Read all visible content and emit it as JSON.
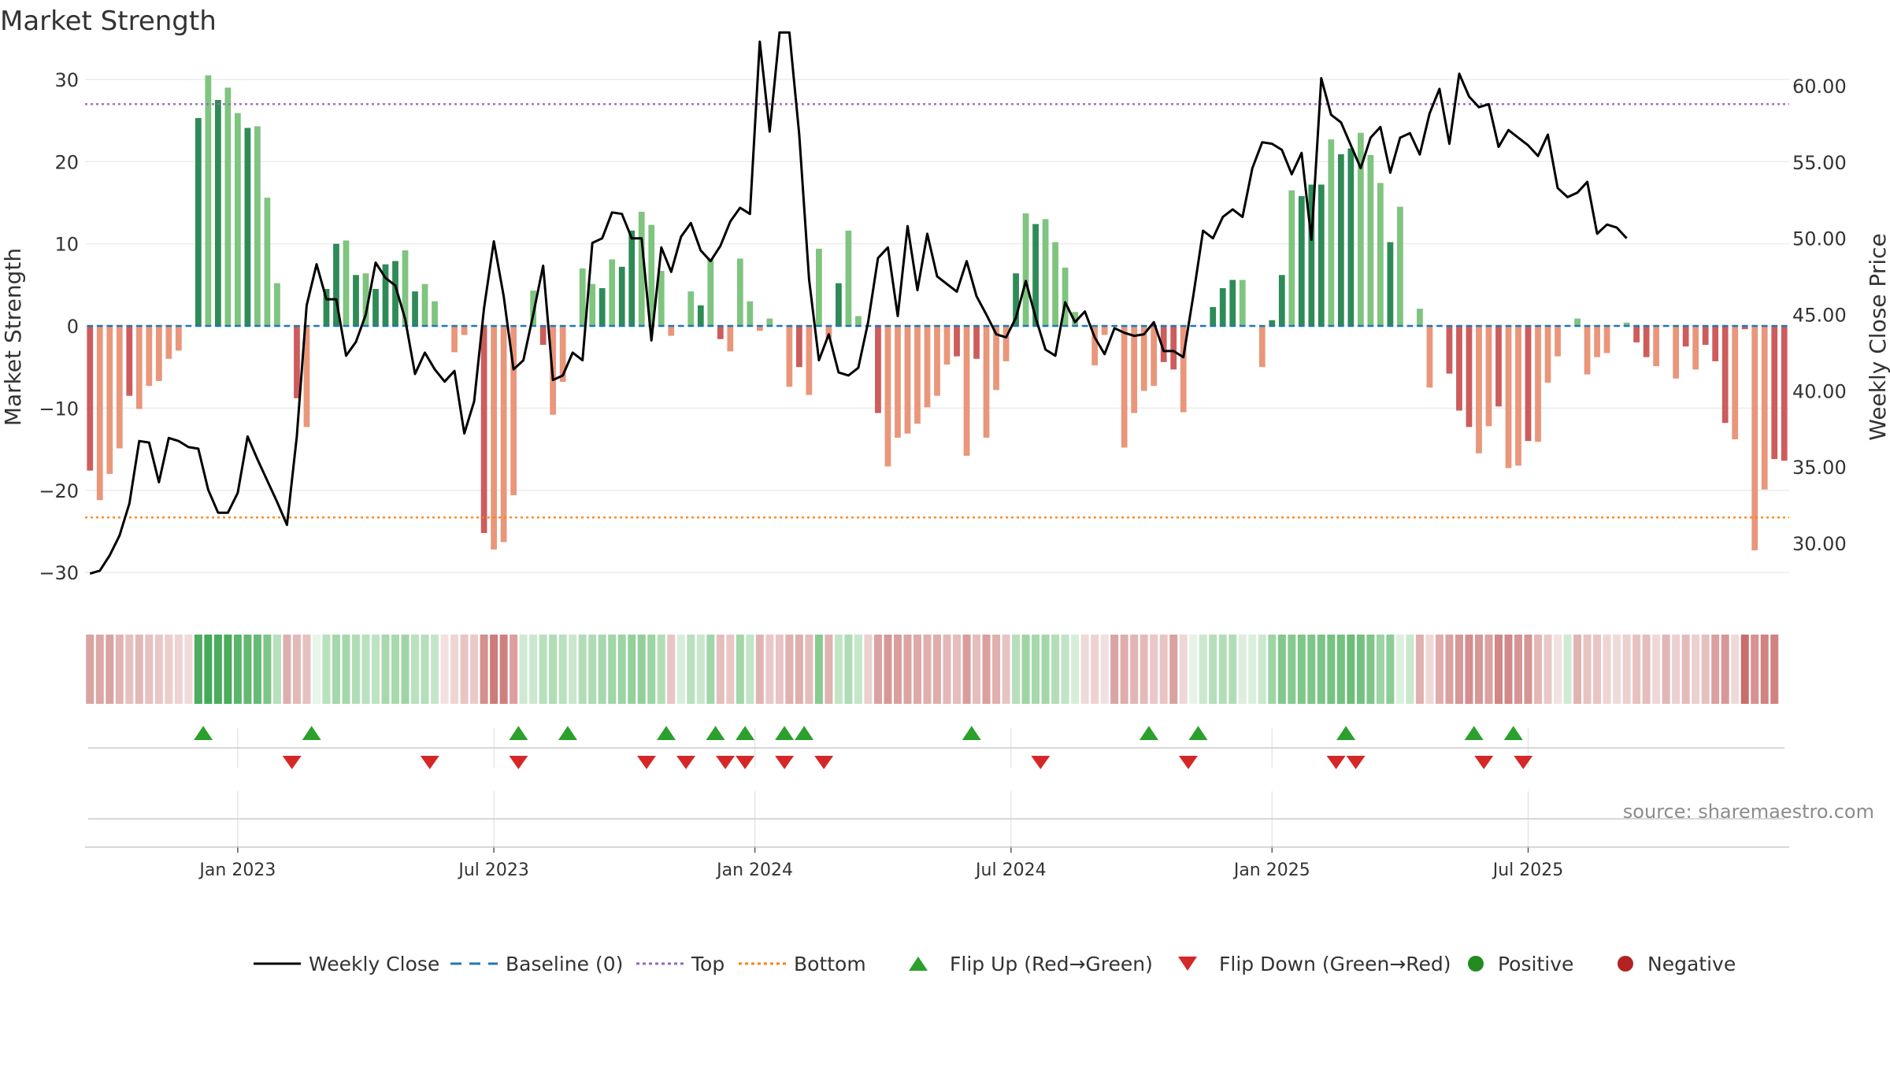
{
  "chart_data": {
    "type": "bar",
    "title": "Market Strength",
    "ylabel": "Market Strength",
    "y2label": "Weekly Close Price",
    "ylim": [
      -32,
      32
    ],
    "y2lim": [
      27,
      61.5
    ],
    "yticks": [
      30,
      20,
      10,
      0,
      -10,
      -20,
      -30
    ],
    "yticklabels": [
      "30",
      "20",
      "10",
      "0",
      "−10",
      "−20",
      "−30"
    ],
    "y2ticks": [
      60,
      55,
      50,
      45,
      40,
      35,
      30
    ],
    "y2ticklabels": [
      "60.00",
      "55.00",
      "50.00",
      "45.00",
      "40.00",
      "35.00",
      "30.00"
    ],
    "xticks": [
      {
        "label": "Jan 2023",
        "week": 15
      },
      {
        "label": "Jul 2023",
        "week": 41
      },
      {
        "label": "Jan 2024",
        "week": 67.5
      },
      {
        "label": "Jul 2024",
        "week": 93.5
      },
      {
        "label": "Jan 2025",
        "week": 120
      },
      {
        "label": "Jul 2025",
        "week": 146
      }
    ],
    "top_level": 27,
    "bottom_level": -23.3,
    "strength": [
      -17.6,
      -21.2,
      -18.0,
      -14.9,
      -8.5,
      -10.1,
      -7.3,
      -6.7,
      -4.0,
      -3.0,
      0,
      25.3,
      30.5,
      27.5,
      29.0,
      25.9,
      24.1,
      24.3,
      15.6,
      5.2,
      0,
      -8.8,
      -12.3,
      0,
      4.5,
      10.0,
      10.4,
      6.2,
      6.4,
      4.5,
      7.5,
      7.9,
      9.2,
      4.2,
      5.1,
      3.0,
      0,
      -3.2,
      -1.1,
      0,
      -25.2,
      -27.2,
      -26.3,
      -20.6,
      0,
      4.3,
      -2.3,
      -10.8,
      -6.8,
      0,
      7.0,
      5.1,
      4.6,
      8.1,
      7.2,
      11.6,
      13.9,
      12.3,
      6.7,
      -1.2,
      0,
      4.2,
      2.5,
      8.1,
      -1.6,
      -3.1,
      8.2,
      3.0,
      -0.6,
      0.9,
      0,
      -7.4,
      -5.0,
      -8.4,
      9.4,
      -1.5,
      5.2,
      11.6,
      1.2,
      0,
      -10.6,
      -17.1,
      -13.6,
      -13.1,
      -11.9,
      -9.9,
      -8.5,
      -4.7,
      -3.7,
      -15.8,
      -4.0,
      -13.6,
      -7.8,
      -4.3,
      6.4,
      13.7,
      12.4,
      13.0,
      10.2,
      7.1,
      1.7,
      0,
      -4.8,
      -1.1,
      0,
      -14.8,
      -10.6,
      -7.9,
      -7.3,
      -4.4,
      -5.3,
      -10.5,
      0,
      0,
      2.3,
      4.6,
      5.6,
      5.6,
      0,
      -5.0,
      0.7,
      6.2,
      16.5,
      15.8,
      17.2,
      17.2,
      22.7,
      20.9,
      21.6,
      23.5,
      20.8,
      17.4,
      10.2,
      14.5,
      0,
      2.1,
      -7.5,
      0,
      -5.8,
      -10.3,
      -12.3,
      -15.5,
      -12.2,
      -9.8,
      -17.3,
      -17.0,
      -14.0,
      -14.1,
      -6.9,
      -3.7,
      0,
      0.9,
      -5.9,
      -3.8,
      -3.3,
      0.1,
      0.4,
      -2.0,
      -3.8,
      -4.9,
      0,
      -6.4,
      -2.5,
      -5.3,
      -2.3,
      -4.3,
      -11.8,
      -13.8,
      -0.4,
      -27.3,
      -19.9,
      -16.2,
      -16.4
    ],
    "weekly_close": [
      28.0,
      28.2,
      29.2,
      30.5,
      32.6,
      36.7,
      36.6,
      34.0,
      36.9,
      36.7,
      36.3,
      36.2,
      33.5,
      32.0,
      32.0,
      33.3,
      37.0,
      35.5,
      34.1,
      32.7,
      31.2,
      37.0,
      45.6,
      48.3,
      46.0,
      46.0,
      42.3,
      43.2,
      45.0,
      48.4,
      47.4,
      46.9,
      44.7,
      41.1,
      42.5,
      41.4,
      40.6,
      41.3,
      37.2,
      39.3,
      45.4,
      49.8,
      46.2,
      41.4,
      42.0,
      45.0,
      48.2,
      40.7,
      41.0,
      42.5,
      42.0,
      49.7,
      50.0,
      51.7,
      51.6,
      50.0,
      50.0,
      43.3,
      49.4,
      47.8,
      50.1,
      51.0,
      49.2,
      48.5,
      49.5,
      51.1,
      52.0,
      51.6,
      62.9,
      57.0,
      63.5,
      63.5,
      56.8,
      47.3,
      42.0,
      43.7,
      41.2,
      41.0,
      41.5,
      44.5,
      48.7,
      49.4,
      44.9,
      50.8,
      46.6,
      50.3,
      47.5,
      47.0,
      46.5,
      48.5,
      46.2,
      45.0,
      43.7,
      43.5,
      44.8,
      47.2,
      44.8,
      42.7,
      42.3,
      45.8,
      44.5,
      45.2,
      43.5,
      42.4,
      44.1,
      43.8,
      43.6,
      43.7,
      44.5,
      42.6,
      42.6,
      42.2,
      46.2,
      50.5,
      50.0,
      51.4,
      51.9,
      51.4,
      54.6,
      56.3,
      56.2,
      55.8,
      54.2,
      55.6,
      49.9,
      60.5,
      58.1,
      57.6,
      56.1,
      54.6,
      56.6,
      57.3,
      54.3,
      56.6,
      56.9,
      55.5,
      58.2,
      59.8,
      56.2,
      60.8,
      59.3,
      58.6,
      58.8,
      56.0,
      57.1,
      56.6,
      56.1,
      55.4,
      56.8,
      53.3,
      52.7,
      53.0,
      53.7,
      50.3,
      50.9,
      50.7,
      50.0
    ],
    "state_colors": [
      "#d9a3a2",
      "#dba8a7",
      "#d9a3a2",
      "#e1b3b2",
      "#e6c1c0",
      "#e2b8b7",
      "#e6c2c1",
      "#e9c7c6",
      "#ebcdcc",
      "#eed3d2",
      "#f0dada",
      "#4cad5f",
      "#45aa58",
      "#4aac5c",
      "#4aac5c",
      "#5cb56c",
      "#64b873",
      "#67ba76",
      "#7ec589",
      "#b7e0bd",
      "#dcb0af",
      "#e2b9b8",
      "#e6c1c0",
      "#e8f5ea",
      "#b8e1be",
      "#a4d8ab",
      "#a4d8ab",
      "#b0ddb6",
      "#b8e1be",
      "#bde3c2",
      "#a8d9ae",
      "#a8d9ae",
      "#9fd5a6",
      "#b9e1be",
      "#b4dfba",
      "#c4e6c8",
      "#f3e1e1",
      "#eed4d3",
      "#e8c5c4",
      "#eacac9",
      "#d48f8e",
      "#cb7c7b",
      "#cd807f",
      "#dc9f9e",
      "#cfe9d2",
      "#cbe8ce",
      "#b7e0bd",
      "#b0ddb5",
      "#b8e1bd",
      "#c8e7cc",
      "#b1ddb6",
      "#aedcb4",
      "#a6d8ad",
      "#a1d6a8",
      "#9cd4a3",
      "#94d09c",
      "#92cf9a",
      "#9cd4a3",
      "#b2deb7",
      "#e8c6c5",
      "#d6eed9",
      "#b8e1be",
      "#c8e7cb",
      "#a1d6a8",
      "#e4bebd",
      "#e8c6c5",
      "#a2d7a9",
      "#c1e5c5",
      "#dfb5b4",
      "#e9c8c7",
      "#e7c3c2",
      "#e0b1b0",
      "#deafae",
      "#e4bcbb",
      "#88cb91",
      "#dfb3b2",
      "#c2e5c6",
      "#afdcb5",
      "#c6e6ca",
      "#ead0cf",
      "#d9a2a1",
      "#d69897",
      "#d99f9e",
      "#dba4a3",
      "#dea9a8",
      "#e0afae",
      "#dfadac",
      "#e3b8b7",
      "#e5bdbc",
      "#d89d9c",
      "#e5bdbc",
      "#da9f9e",
      "#e0afae",
      "#e7c4c3",
      "#b6e0bb",
      "#9ed5a5",
      "#a6d8ac",
      "#a3d7a9",
      "#b2deb7",
      "#c0e4c5",
      "#d6eed9",
      "#eedad9",
      "#eed2d1",
      "#f2dfdf",
      "#d8a5a4",
      "#dfadac",
      "#e2b5b4",
      "#e4bab9",
      "#e9c8c7",
      "#e8c4c3",
      "#d9a2a1",
      "#efd7d6",
      "#e6f4e7",
      "#cbe8ce",
      "#b5dfba",
      "#b2deb7",
      "#b1ddb6",
      "#dceedd",
      "#d9f0dc",
      "#c9e8cc",
      "#9ed5a5",
      "#82c88c",
      "#86ca90",
      "#7fc689",
      "#7fc689",
      "#7ac486",
      "#76c282",
      "#74c180",
      "#6dbd7a",
      "#74c180",
      "#7fc689",
      "#9cd4a3",
      "#8ccd95",
      "#dcf0de",
      "#c9e8cc",
      "#e0b1b0",
      "#eed7d6",
      "#dfadac",
      "#d9a2a1",
      "#d69897",
      "#d38f8e",
      "#d69897",
      "#dba2a1",
      "#d08886",
      "#d18a89",
      "#d59695",
      "#d59594",
      "#e3b8b7",
      "#e9c9c8",
      "#f3e1e1",
      "#cfead2",
      "#e1b3b2",
      "#e7c3c2",
      "#e8c5c4",
      "#eed5d4",
      "#f0dbdb",
      "#ecd0cf",
      "#e7c1c0",
      "#e5bdbc",
      "#efd7d6",
      "#e2b6b5",
      "#ecd0cf",
      "#e4bab9",
      "#ead0cf",
      "#e6c0bf",
      "#d9a1a0",
      "#d69897",
      "#efd9d8",
      "#c96e6d",
      "#d89190",
      "#d08382",
      "#d08382"
    ],
    "flips_up": [
      11.5,
      22.5,
      43.5,
      48.5,
      58.5,
      63.5,
      66.5,
      70.5,
      72.5,
      89.5,
      107.5,
      112.5,
      127.5,
      140.5,
      144.5
    ],
    "flips_down": [
      20.5,
      34.5,
      43.5,
      56.5,
      60.5,
      64.5,
      66.5,
      70.5,
      74.5,
      96.5,
      111.5,
      126.5,
      128.5,
      141.5,
      145.5
    ],
    "watermark": "source: sharemaestro.com",
    "legend": [
      {
        "label": "Weekly Close",
        "symbol": "line",
        "color": "#000000"
      },
      {
        "label": "Baseline (0)",
        "symbol": "dash",
        "color": "#1f77b4"
      },
      {
        "label": "Top",
        "symbol": "dot",
        "color": "#9467bd"
      },
      {
        "label": "Bottom",
        "symbol": "dot",
        "color": "#ff7f0e"
      },
      {
        "label": "Flip Up (Red→Green)",
        "symbol": "tri-up",
        "color": "#2ca02c"
      },
      {
        "label": "Flip Down (Green→Red)",
        "symbol": "tri-down",
        "color": "#d62728"
      },
      {
        "label": "Positive",
        "symbol": "circle",
        "color": "#228b22"
      },
      {
        "label": "Negative",
        "symbol": "circle",
        "color": "#b22222"
      }
    ],
    "colors": {
      "pos_strong": "#2e8b57",
      "pos_light": "#7fc47f",
      "neg_strong": "#cd5c5c",
      "neg_light": "#e9967a",
      "baseline": "#1f77b4",
      "top": "#9467bd",
      "bottom": "#ff7f0e",
      "flip_up": "#2ca02c",
      "flip_down": "#d62728",
      "close": "#000000"
    }
  }
}
